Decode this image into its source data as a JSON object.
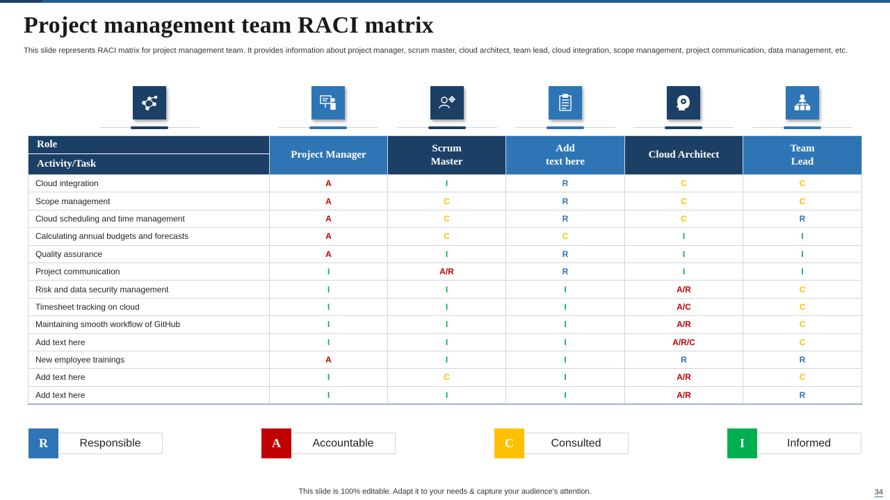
{
  "title": "Project management team RACI matrix",
  "subtitle": "This slide represents RACI matrix for project management team. It provides information about project manager, scrum master, cloud architect, team lead, cloud integration, scope management, project communication, data management, etc.",
  "icons": [
    "network-nodes-icon",
    "presentation-board-icon",
    "user-settings-icon",
    "clipboard-checklist-icon",
    "brain-head-icon",
    "org-hierarchy-icon"
  ],
  "table": {
    "role_header": "Role",
    "task_header": "Activity/Task",
    "columns": [
      {
        "line1": "Project  Manager",
        "line2": ""
      },
      {
        "line1": "Scrum",
        "line2": "Master"
      },
      {
        "line1": "Add",
        "line2": "text here"
      },
      {
        "line1": "Cloud Architect",
        "line2": ""
      },
      {
        "line1": "Team",
        "line2": "Lead"
      }
    ],
    "rows": [
      {
        "task": "Cloud integration",
        "values": [
          "A",
          "I",
          "R",
          "C",
          "C"
        ]
      },
      {
        "task": "Scope management",
        "values": [
          "A",
          "C",
          "R",
          "C",
          "C"
        ]
      },
      {
        "task": "Cloud scheduling and time management",
        "values": [
          "A",
          "C",
          "R",
          "C",
          "R"
        ]
      },
      {
        "task": "Calculating annual budgets and forecasts",
        "values": [
          "A",
          "C",
          "C",
          "I",
          "I"
        ]
      },
      {
        "task": "Quality assurance",
        "values": [
          "A",
          "I",
          "R",
          "I",
          "I"
        ]
      },
      {
        "task": "Project communication",
        "values": [
          "I",
          "A/R",
          "R",
          "I",
          "I"
        ]
      },
      {
        "task": "Risk and data security management",
        "values": [
          "I",
          "I",
          "I",
          "A/R",
          "C"
        ]
      },
      {
        "task": "Timesheet tracking on cloud",
        "values": [
          "I",
          "I",
          "I",
          "A/C",
          "C"
        ]
      },
      {
        "task": "Maintaining smooth workflow of GitHub",
        "values": [
          "I",
          "I",
          "I",
          "A/R",
          "C"
        ]
      },
      {
        "task": "Add text here",
        "values": [
          "I",
          "I",
          "I",
          "A/R/C",
          "C"
        ]
      },
      {
        "task": "New employee trainings",
        "values": [
          "A",
          "I",
          "I",
          "R",
          "R"
        ]
      },
      {
        "task": "Add text here",
        "values": [
          "I",
          "C",
          "I",
          "A/R",
          "C"
        ]
      },
      {
        "task": "Add text here",
        "values": [
          "I",
          "I",
          "I",
          "A/R",
          "R"
        ]
      }
    ]
  },
  "legend": [
    {
      "key": "R",
      "label": "Responsible",
      "color": "#2e75b6"
    },
    {
      "key": "A",
      "label": "Accountable",
      "color": "#c00000"
    },
    {
      "key": "C",
      "label": "Consulted",
      "color": "#ffc000"
    },
    {
      "key": "I",
      "label": "Informed",
      "color": "#00b050"
    }
  ],
  "colors": {
    "dark": "#1c3f66",
    "light": "#2e75b6",
    "A": "#c00000",
    "R": "#2e75b6",
    "C": "#ffc000",
    "I": "#00b050"
  },
  "footer": "This slide is 100% editable. Adapt it to your needs & capture your audience’s attention.",
  "page_number": "34"
}
